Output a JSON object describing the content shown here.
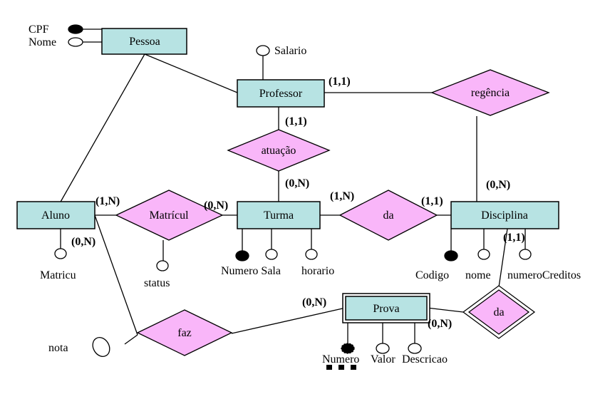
{
  "entities": {
    "pessoa": "Pessoa",
    "professor": "Professor",
    "aluno": "Aluno",
    "turma": "Turma",
    "disciplina": "Disciplina",
    "prova": "Prova"
  },
  "relationships": {
    "regencia": "regência",
    "atuacao": "atuação",
    "matricula": "Matrícul",
    "turma_disciplina": "da",
    "faz": "faz",
    "prova_disciplina": "da"
  },
  "attributes": {
    "cpf": "CPF",
    "nome": "Nome",
    "salario": "Salario",
    "matricu": "Matricu",
    "status": "status",
    "numero_sala": "Numero Sala",
    "horario": "horario",
    "codigo": "Codigo",
    "disc_nome": "nome",
    "numero_creditos": "numeroCreditos",
    "nota": "nota",
    "prova_numero": "Numero",
    "valor": "Valor",
    "descricao": "Descricao"
  },
  "cardinalities": {
    "prof_regencia": "(1,1)",
    "prof_atuacao": "(1,1)",
    "turma_atuacao": "(0,N)",
    "disc_regencia": "(0,N)",
    "aluno_matricula": "(1,N)",
    "turma_matricula": "(0,N)",
    "aluno_faz": "(0,N)",
    "turma_da": "(1,N)",
    "disc_da": "(1,1)",
    "prova_faz": "(0,N)",
    "prova_da": "(0,N)",
    "disc_prova_da": "(1,1)"
  }
}
